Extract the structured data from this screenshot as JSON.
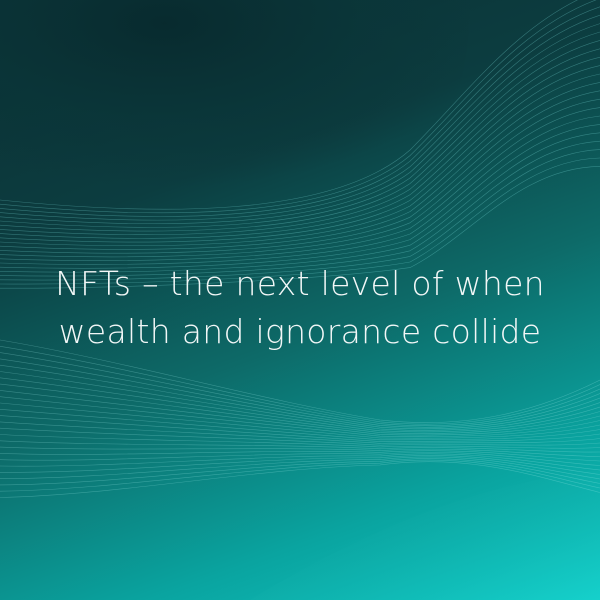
{
  "headline": {
    "line1": "NFTs – the next level of when",
    "line2": "wealth and ignorance collide"
  },
  "background": {
    "colors": {
      "dark": "#0b2f33",
      "mid": "#0d6a68",
      "light": "#10c8c4",
      "line": "#7fe3df"
    }
  }
}
